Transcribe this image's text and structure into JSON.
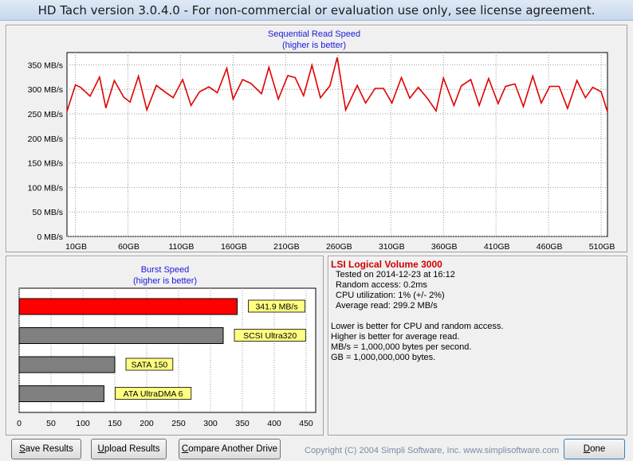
{
  "window": {
    "title": "HD Tach version 3.0.4.0  - For non-commercial or evaluation use only, see license agreement."
  },
  "chart_data": [
    {
      "type": "line",
      "title": "Sequential Read Speed",
      "subtitle": "(higher is better)",
      "ylim": [
        0,
        375
      ],
      "yticks": [
        "0 MB/s",
        "50 MB/s",
        "100 MB/s",
        "150 MB/s",
        "200 MB/s",
        "250 MB/s",
        "300 MB/s",
        "350 MB/s"
      ],
      "xlim": [
        0,
        514
      ],
      "xticks": [
        "10GB",
        "60GB",
        "110GB",
        "160GB",
        "210GB",
        "260GB",
        "310GB",
        "360GB",
        "410GB",
        "460GB",
        "510GB"
      ],
      "grid": true,
      "series": [
        {
          "color": "#e00000",
          "x": [
            0,
            8,
            13,
            22,
            31,
            37,
            45,
            54,
            60,
            68,
            76,
            85,
            93,
            101,
            110,
            118,
            126,
            135,
            143,
            152,
            158,
            167,
            175,
            185,
            192,
            201,
            210,
            217,
            225,
            233,
            241,
            250,
            257,
            265,
            276,
            284,
            293,
            301,
            309,
            318,
            326,
            334,
            343,
            351,
            358,
            368,
            375,
            384,
            392,
            401,
            410,
            417,
            426,
            434,
            443,
            451,
            459,
            468,
            476,
            485,
            493,
            500,
            508,
            514
          ],
          "y": [
            255,
            309,
            304,
            286,
            325,
            262,
            318,
            284,
            274,
            327,
            258,
            308,
            295,
            283,
            320,
            267,
            295,
            305,
            293,
            343,
            280,
            320,
            312,
            291,
            345,
            280,
            328,
            324,
            287,
            349,
            283,
            307,
            365,
            258,
            308,
            272,
            302,
            302,
            272,
            324,
            282,
            304,
            281,
            256,
            323,
            267,
            307,
            320,
            267,
            322,
            271,
            306,
            311,
            265,
            327,
            272,
            306,
            306,
            261,
            318,
            283,
            304,
            295,
            254
          ]
        }
      ]
    },
    {
      "type": "bar",
      "orientation": "horizontal",
      "title": "Burst Speed",
      "subtitle": "(higher is better)",
      "xlim": [
        0,
        465
      ],
      "xticks": [
        "0",
        "50",
        "100",
        "150",
        "200",
        "250",
        "300",
        "350",
        "400",
        "450"
      ],
      "grid": true,
      "categories": [
        "341.9 MB/s",
        "SCSI Ultra320",
        "SATA 150",
        "ATA UltraDMA 6"
      ],
      "values": [
        341.9,
        320,
        150,
        133
      ],
      "colors": [
        "#ff0000",
        "#808080",
        "#808080",
        "#808080"
      ]
    }
  ],
  "info": {
    "drive_name": "LSI Logical Volume 3000",
    "tested_on": "Tested on 2014-12-23 at 16:12",
    "random_access": "Random access: 0.2ms",
    "cpu_utilization": "CPU utilization: 1% (+/- 2%)",
    "average_read": "Average read: 299.2 MB/s",
    "note1": "Lower is better for CPU and random access.",
    "note2": "Higher is better for average read.",
    "note3": "MB/s = 1,000,000 bytes per second.",
    "note4": "GB = 1,000,000,000 bytes."
  },
  "buttons": {
    "save_accel": "S",
    "save_rest": "ave Results",
    "upload_accel": "U",
    "upload_rest": "pload Results",
    "compare_accel": "C",
    "compare_rest": "ompare Another Drive",
    "done_accel": "D",
    "done_rest": "one"
  },
  "copyright": "Copyright (C) 2004 Simpli Software, Inc. www.simplisoftware.com"
}
